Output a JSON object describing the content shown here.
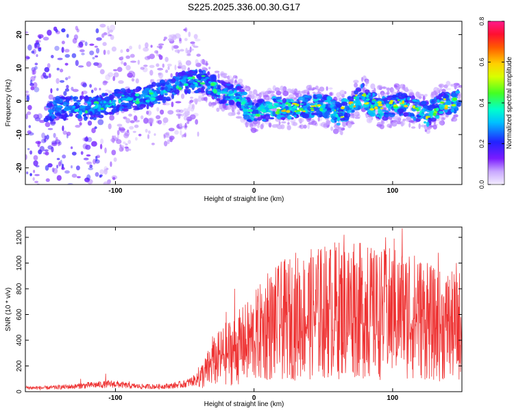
{
  "title": "S225.2025.336.00.30.G17",
  "colors": {
    "snr_line": "#ee3333",
    "spectrogram_low": "#7a1bff",
    "spectrogram_high": "#ff1155"
  },
  "chart_data": [
    {
      "type": "heatmap",
      "xlabel": "Height of straight line (km)",
      "ylabel": "Frequency (Hz)",
      "xlim": [
        -165,
        150
      ],
      "ylim": [
        -25,
        24
      ],
      "xticks": [
        -100,
        0,
        100
      ],
      "yticks": [
        -20,
        -10,
        0,
        10,
        20
      ],
      "xtick_labels": [
        "-100",
        "0",
        "100"
      ],
      "ytick_labels": [
        "-20",
        "-10",
        "0",
        "10",
        "20"
      ],
      "grid": false,
      "colorbar": {
        "label": "Normalized spectral amplitude",
        "range": [
          0,
          0.8
        ],
        "ticks": [
          "0.0",
          "0.2",
          "0.4",
          "0.6",
          "0.8"
        ],
        "colormap": "rainbow-purple-to-magenta"
      },
      "ridge": {
        "x": [
          -160,
          -140,
          -125,
          -115,
          -100,
          -80,
          -65,
          -55,
          -45,
          -35,
          -25,
          -18,
          -10,
          -3,
          5,
          15,
          25,
          35,
          45,
          55,
          62,
          70,
          78,
          85,
          95,
          105,
          115,
          125,
          135,
          145
        ],
        "y": [
          -3,
          -2,
          -2,
          -2,
          0,
          1,
          3,
          5,
          6,
          6,
          3,
          2,
          1,
          -3,
          -3,
          -2,
          -2,
          -2,
          -1,
          -2,
          -4,
          -1,
          2,
          -1,
          -2,
          -1,
          -2,
          -4,
          -1,
          0
        ]
      }
    },
    {
      "type": "line",
      "xlabel": "Height of straight line (km)",
      "ylabel": "SNR (10 * v/v)",
      "xlim": [
        -165,
        150
      ],
      "ylim": [
        0,
        1280
      ],
      "xticks": [
        -100,
        0,
        100
      ],
      "yticks": [
        0,
        200,
        400,
        600,
        800,
        1000,
        1200
      ],
      "xtick_labels": [
        "-100",
        "0",
        "100"
      ],
      "ytick_labels": [
        "0",
        "200",
        "400",
        "600",
        "800",
        "1000",
        "1200"
      ],
      "grid": false,
      "series": [
        {
          "x": [
            -165,
            -150,
            -140,
            -130,
            -120,
            -110,
            -100,
            -90,
            -80,
            -70,
            -60,
            -50,
            -45,
            -40,
            -35,
            -30,
            -25,
            -20,
            -15,
            -10,
            -5,
            0,
            5,
            10,
            20,
            30,
            40,
            50,
            60,
            70,
            80,
            90,
            100,
            110,
            120,
            130,
            140,
            150
          ],
          "values": [
            30,
            30,
            35,
            40,
            50,
            55,
            60,
            45,
            40,
            40,
            45,
            60,
            80,
            100,
            150,
            220,
            260,
            300,
            320,
            350,
            380,
            420,
            460,
            500,
            550,
            580,
            600,
            620,
            640,
            650,
            620,
            600,
            610,
            600,
            580,
            520,
            500,
            520
          ],
          "peaks": [
            [
              -125,
              100
            ],
            [
              -107,
              140
            ],
            [
              -90,
              80
            ],
            [
              -40,
              190
            ],
            [
              -30,
              430
            ],
            [
              -20,
              620
            ],
            [
              -14,
              800
            ],
            [
              -8,
              500
            ],
            [
              5,
              650
            ],
            [
              10,
              920
            ],
            [
              18,
              850
            ],
            [
              30,
              1080
            ],
            [
              40,
              980
            ],
            [
              48,
              1100
            ],
            [
              55,
              1060
            ],
            [
              65,
              1220
            ],
            [
              72,
              1150
            ],
            [
              82,
              1120
            ],
            [
              88,
              1060
            ],
            [
              95,
              1200
            ],
            [
              101,
              1190
            ],
            [
              107,
              1270
            ],
            [
              112,
              1050
            ],
            [
              118,
              990
            ],
            [
              125,
              1000
            ],
            [
              133,
              1080
            ],
            [
              140,
              900
            ],
            [
              146,
              1000
            ]
          ]
        }
      ]
    }
  ]
}
